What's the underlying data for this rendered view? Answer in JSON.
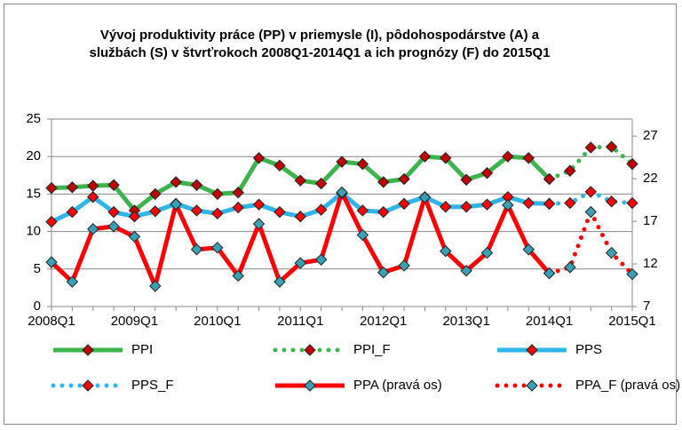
{
  "chart_data": {
    "type": "line",
    "title": "Vývoj produktivity práce (PP) v priemysle (I), pôdohospodárstve (A) a službách (S) v štvrťrokoch 2008Q1-2014Q1  a ich prognózy (F) do 2015Q1",
    "categories": [
      "2008Q1",
      null,
      null,
      null,
      "2009Q1",
      null,
      null,
      null,
      "2010Q1",
      null,
      null,
      null,
      "2011Q1",
      null,
      null,
      null,
      "2012Q1",
      null,
      null,
      null,
      "2013Q1",
      null,
      null,
      null,
      "2014Q1",
      null,
      null,
      null,
      "2015Q1"
    ],
    "ylim": [
      0,
      25
    ],
    "yticks": [
      0,
      5,
      10,
      15,
      20,
      25
    ],
    "y2lim": [
      7,
      29
    ],
    "y2ticks": [
      7,
      12,
      17,
      22,
      27
    ],
    "grid": true,
    "series": [
      {
        "name": "PPI",
        "color": "#3cb44b",
        "marker_color": "#c00000",
        "dashed": false,
        "values": [
          15.8,
          15.9,
          16.1,
          16.2,
          12.8,
          15.0,
          16.6,
          16.2,
          15.0,
          15.2,
          19.8,
          18.8,
          16.8,
          16.4,
          19.3,
          19.0,
          16.6,
          17.0,
          20.0,
          19.8,
          16.9,
          17.8,
          20.0,
          19.8,
          17.0,
          null,
          null,
          null,
          null
        ]
      },
      {
        "name": "PPI_F",
        "color": "#3cb44b",
        "marker_color": "#c00000",
        "dashed": true,
        "values": [
          null,
          null,
          null,
          null,
          null,
          null,
          null,
          null,
          null,
          null,
          null,
          null,
          null,
          null,
          null,
          null,
          null,
          null,
          null,
          null,
          null,
          null,
          null,
          null,
          17.0,
          18.1,
          21.2,
          21.3,
          19.0
        ]
      },
      {
        "name": "PPS",
        "color": "#2eb6ea",
        "marker_color": "#ff0000",
        "dashed": false,
        "values": [
          11.3,
          12.6,
          14.6,
          12.6,
          12.0,
          12.7,
          13.7,
          12.8,
          12.4,
          13.2,
          13.6,
          12.6,
          12.0,
          12.9,
          15.1,
          12.8,
          12.6,
          13.7,
          14.6,
          13.3,
          13.3,
          13.6,
          14.6,
          13.8,
          13.7,
          null,
          null,
          null,
          null
        ]
      },
      {
        "name": "PPS_F",
        "color": "#2eb6ea",
        "marker_color": "#ff0000",
        "dashed": true,
        "values": [
          null,
          null,
          null,
          null,
          null,
          null,
          null,
          null,
          null,
          null,
          null,
          null,
          null,
          null,
          null,
          null,
          null,
          null,
          null,
          null,
          null,
          null,
          null,
          null,
          13.7,
          13.8,
          15.3,
          14.0,
          13.8
        ]
      },
      {
        "name": "PPA (pravá os)",
        "color": "#ff0000",
        "marker_color": "#3aa0b8",
        "dashed": false,
        "axis": "y2",
        "values": [
          12.2,
          9.9,
          16.1,
          16.4,
          15.2,
          9.4,
          19.0,
          13.7,
          13.9,
          10.6,
          16.7,
          9.9,
          12.1,
          12.5,
          20.4,
          15.4,
          11.0,
          11.8,
          19.8,
          13.5,
          11.2,
          13.3,
          18.9,
          13.7,
          10.9,
          null,
          null,
          null,
          null
        ]
      },
      {
        "name": "PPA_F (pravá os)",
        "color": "#ff0000",
        "marker_color": "#3aa0b8",
        "dashed": true,
        "axis": "y2",
        "values": [
          null,
          null,
          null,
          null,
          null,
          null,
          null,
          null,
          null,
          null,
          null,
          null,
          null,
          null,
          null,
          null,
          null,
          null,
          null,
          null,
          null,
          null,
          null,
          null,
          10.9,
          11.6,
          18.1,
          13.3,
          10.8
        ]
      }
    ]
  }
}
